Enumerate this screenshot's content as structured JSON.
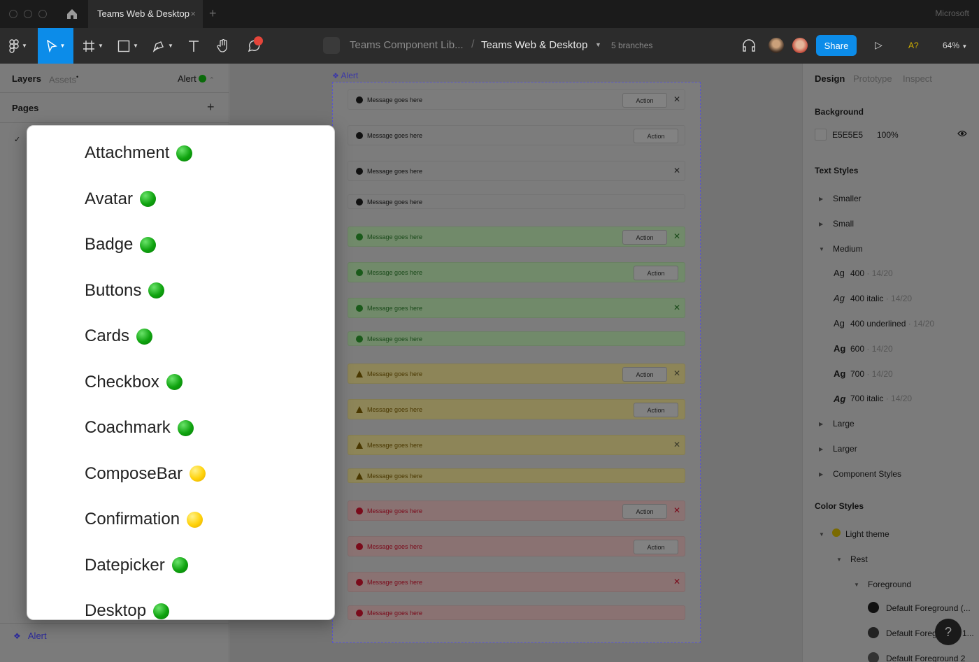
{
  "window": {
    "tab_title": "Teams Web & Desktop",
    "tab_close": "×",
    "new_tab": "+",
    "account": "Microsoft"
  },
  "toolbar": {
    "project": "Teams Component Lib...",
    "separator": "/",
    "file": "Teams Web & Desktop",
    "branches": "5 branches",
    "share_label": "Share",
    "a11y_label": "A?",
    "zoom": "64%"
  },
  "left_panel": {
    "tabs": [
      "Layers",
      "Assets",
      "Alert"
    ],
    "pages_label": "Pages",
    "add": "+",
    "check": "✓",
    "selected_layer": "Alert"
  },
  "canvas": {
    "frame_label": "Alert",
    "alerts": [
      {
        "variant": "neutral",
        "message": "Message goes here",
        "action": "Action",
        "close": true
      },
      {
        "variant": "neutral",
        "message": "Message goes here",
        "action": "Action",
        "close": false
      },
      {
        "variant": "neutral",
        "message": "Message goes here",
        "action": "",
        "close": true
      },
      {
        "variant": "neutral",
        "message": "Message goes here",
        "action": "",
        "close": false
      },
      {
        "variant": "success",
        "message": "Message goes here",
        "action": "Action",
        "close": true
      },
      {
        "variant": "success",
        "message": "Message goes here",
        "action": "Action",
        "close": false
      },
      {
        "variant": "success",
        "message": "Message goes here",
        "action": "",
        "close": true
      },
      {
        "variant": "success",
        "message": "Message goes here",
        "action": "",
        "close": false
      },
      {
        "variant": "warning",
        "message": "Message goes here",
        "action": "Action",
        "close": true
      },
      {
        "variant": "warning",
        "message": "Message goes here",
        "action": "Action",
        "close": false
      },
      {
        "variant": "warning",
        "message": "Message goes here",
        "action": "",
        "close": true
      },
      {
        "variant": "warning",
        "message": "Message goes here",
        "action": "",
        "close": false
      },
      {
        "variant": "danger",
        "message": "Message goes here",
        "action": "Action",
        "close": true
      },
      {
        "variant": "danger",
        "message": "Message goes here",
        "action": "Action",
        "close": false
      },
      {
        "variant": "danger",
        "message": "Message goes here",
        "action": "",
        "close": true
      },
      {
        "variant": "danger",
        "message": "Message goes here",
        "action": "",
        "close": false
      }
    ]
  },
  "right_panel": {
    "tabs": [
      "Design",
      "Prototype",
      "Inspect"
    ],
    "background_label": "Background",
    "bg_hex": "E5E5E5",
    "bg_opacity": "100%",
    "text_styles_label": "Text Styles",
    "text_styles": [
      "Smaller",
      "Small",
      "Medium"
    ],
    "medium_items": [
      {
        "ag": "Ag",
        "name": "400",
        "size": " · 14/20"
      },
      {
        "ag": "Ag",
        "name": "400 italic",
        "size": " · 14/20"
      },
      {
        "ag": "Ag",
        "name": "400 underlined",
        "size": " · 14/20"
      },
      {
        "ag": "Ag",
        "name": "600",
        "size": " · 14/20"
      },
      {
        "ag": "Ag",
        "name": "700",
        "size": " · 14/20"
      },
      {
        "ag": "Ag",
        "name": "700 italic",
        "size": " · 14/20"
      }
    ],
    "text_styles_more": [
      "Large",
      "Larger",
      "Component Styles"
    ],
    "color_styles_label": "Color Styles",
    "light_theme": "Light theme",
    "rest": "Rest",
    "foreground": "Foreground",
    "colors": [
      "Default Foreground (...",
      "Default Foreg",
      "Default Foreground 2"
    ],
    "color_suffix": "1...",
    "help": "?"
  },
  "popup": {
    "items": [
      {
        "label": "Attachment",
        "status": "green"
      },
      {
        "label": "Avatar",
        "status": "green"
      },
      {
        "label": "Badge",
        "status": "green"
      },
      {
        "label": "Buttons",
        "status": "green"
      },
      {
        "label": "Cards",
        "status": "green"
      },
      {
        "label": "Checkbox",
        "status": "green"
      },
      {
        "label": "Coachmark",
        "status": "green"
      },
      {
        "label": "ComposeBar",
        "status": "yellow"
      },
      {
        "label": "Confirmation",
        "status": "yellow"
      },
      {
        "label": "Datepicker",
        "status": "green"
      },
      {
        "label": "Desktop",
        "status": "green"
      }
    ]
  },
  "colors": {
    "accent": "#0c8ce9",
    "status_green": "#0fa30f",
    "status_yellow": "#ffd20a",
    "component_purple": "#5a56c8"
  }
}
